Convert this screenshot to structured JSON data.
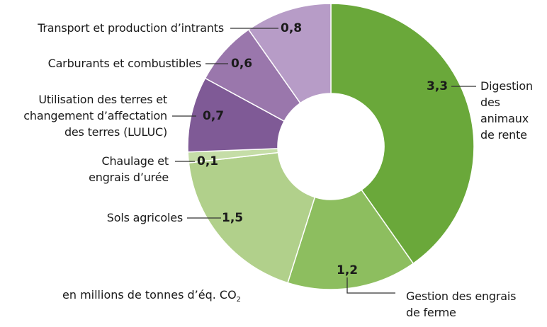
{
  "chart_data": {
    "type": "pie",
    "variant": "donut",
    "title": "",
    "unit_label": "en millions de tonnes d’éq. CO",
    "unit_subscript": "2",
    "start_angle_deg": 0,
    "direction": "clockwise",
    "categories": [
      "Digestion des animaux de rente",
      "Gestion des engrais de ferme",
      "Sols agricoles",
      "Chaulage et engrais d’urée",
      "Utilisation des terres et changement d’affectation des terres (LULUC)",
      "Carburants et combustibles",
      "Transport et production d’intrants"
    ],
    "values": [
      3.3,
      1.2,
      1.5,
      0.1,
      0.7,
      0.6,
      0.8
    ],
    "value_labels": [
      "3,3",
      "1,2",
      "1,5",
      "0,1",
      "0,7",
      "0,6",
      "0,8"
    ],
    "colors": [
      "#6aa83a",
      "#8dbe5f",
      "#b1d08b",
      "#c5dda7",
      "#7f5a96",
      "#9a77ac",
      "#b79cc7"
    ],
    "total": 8.2
  },
  "labels": {
    "digestion": [
      "Digestion",
      "des",
      "animaux",
      "de rente"
    ],
    "gestion": [
      "Gestion des engrais",
      "de ferme"
    ],
    "sols": "Sols agricoles",
    "chaulage": [
      "Chaulage et",
      "engrais d’urée"
    ],
    "luluc": [
      "Utilisation des terres et",
      "changement d’affectation",
      "des terres (LULUC)"
    ],
    "carburants": "Carburants et combustibles",
    "transport": "Transport et production d’intrants"
  }
}
